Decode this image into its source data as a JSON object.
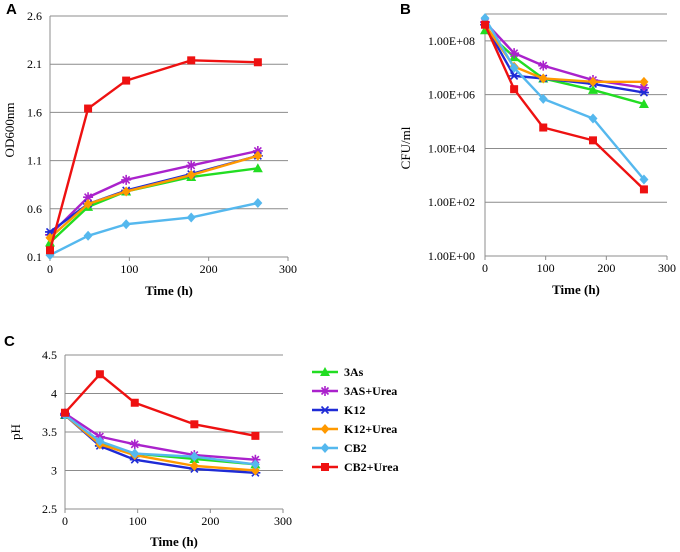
{
  "colors": {
    "3As": "#22dd22",
    "3AS+Urea": "#aa22cc",
    "K12": "#1f2bd6",
    "K12+Urea": "#ff9900",
    "CB2": "#55b8ee",
    "CB2+Urea": "#ee1111"
  },
  "markers": {
    "3As": "triangle",
    "3AS+Urea": "star",
    "K12": "asterisk",
    "K12+Urea": "diamond",
    "CB2": "diamond",
    "CB2+Urea": "square"
  },
  "legend": [
    "3As",
    "3AS+Urea",
    "K12",
    "K12+Urea",
    "CB2",
    "CB2+Urea"
  ],
  "chart_data": [
    {
      "panel": "A",
      "type": "line",
      "xlabel": "Time (h)",
      "ylabel": "OD600nm",
      "xlim": [
        0,
        300
      ],
      "ylim": [
        0.1,
        2.6
      ],
      "yscale": "linear",
      "xticks": [
        "0",
        "100",
        "200",
        "300"
      ],
      "yticks": [
        "0.1",
        "0.6",
        "1.1",
        "1.6",
        "2.1",
        "2.6"
      ],
      "x": [
        0,
        48,
        96,
        178,
        262
      ],
      "series": [
        {
          "name": "3As",
          "values": [
            0.25,
            0.62,
            0.78,
            0.93,
            1.02
          ]
        },
        {
          "name": "3AS+Urea",
          "values": [
            0.33,
            0.72,
            0.9,
            1.05,
            1.2
          ]
        },
        {
          "name": "K12",
          "values": [
            0.36,
            0.65,
            0.79,
            0.96,
            1.15
          ]
        },
        {
          "name": "K12+Urea",
          "values": [
            0.3,
            0.65,
            0.78,
            0.95,
            1.15
          ]
        },
        {
          "name": "CB2",
          "values": [
            0.12,
            0.32,
            0.44,
            0.51,
            0.66
          ]
        },
        {
          "name": "CB2+Urea",
          "values": [
            0.17,
            1.64,
            1.93,
            2.14,
            2.12
          ]
        }
      ]
    },
    {
      "panel": "B",
      "type": "line",
      "xlabel": "Time (h)",
      "ylabel": "CFU/ml",
      "xlim": [
        0,
        300
      ],
      "ylim": [
        0,
        9
      ],
      "yscale": "log10",
      "xticks": [
        "0",
        "100",
        "200",
        "300"
      ],
      "yticks": [
        "1.00E+00",
        "1.00E+02",
        "1.00E+04",
        "1.00E+06",
        "1.00E+08"
      ],
      "ytick_exponents": [
        0,
        2,
        4,
        6,
        8
      ],
      "x": [
        0,
        48,
        96,
        178,
        262
      ],
      "series": [
        {
          "name": "3As",
          "values": [
            250000000.0,
            25000000.0,
            4000000.0,
            1500000.0,
            450000.0
          ]
        },
        {
          "name": "3AS+Urea",
          "values": [
            500000000.0,
            35000000.0,
            12000000.0,
            3500000.0,
            1800000.0
          ]
        },
        {
          "name": "K12",
          "values": [
            400000000.0,
            5000000.0,
            4000000.0,
            2500000.0,
            1200000.0
          ]
        },
        {
          "name": "K12+Urea",
          "values": [
            400000000.0,
            11000000.0,
            4000000.0,
            3000000.0,
            3000000.0
          ]
        },
        {
          "name": "CB2",
          "values": [
            700000000.0,
            10000000.0,
            700000.0,
            130000.0,
            700
          ]
        },
        {
          "name": "CB2+Urea",
          "values": [
            400000000.0,
            1600000.0,
            60000.0,
            20000.0,
            300
          ]
        }
      ]
    },
    {
      "panel": "C",
      "type": "line",
      "xlabel": "Time (h)",
      "ylabel": "pH",
      "xlim": [
        0,
        300
      ],
      "ylim": [
        2.5,
        4.5
      ],
      "yscale": "linear",
      "xticks": [
        "0",
        "100",
        "200",
        "300"
      ],
      "yticks": [
        "2.5",
        "3",
        "3.5",
        "4",
        "4.5"
      ],
      "x": [
        0,
        48,
        96,
        178,
        262
      ],
      "series": [
        {
          "name": "3As",
          "values": [
            3.72,
            3.36,
            3.22,
            3.15,
            3.08
          ]
        },
        {
          "name": "3AS+Urea",
          "values": [
            3.74,
            3.44,
            3.34,
            3.2,
            3.14
          ]
        },
        {
          "name": "K12",
          "values": [
            3.72,
            3.32,
            3.14,
            3.02,
            2.97
          ]
        },
        {
          "name": "K12+Urea",
          "values": [
            3.72,
            3.34,
            3.2,
            3.06,
            3.0
          ]
        },
        {
          "name": "CB2",
          "values": [
            3.72,
            3.38,
            3.22,
            3.18,
            3.08
          ]
        },
        {
          "name": "CB2+Urea",
          "values": [
            3.75,
            4.25,
            3.88,
            3.6,
            3.45
          ]
        }
      ]
    }
  ]
}
